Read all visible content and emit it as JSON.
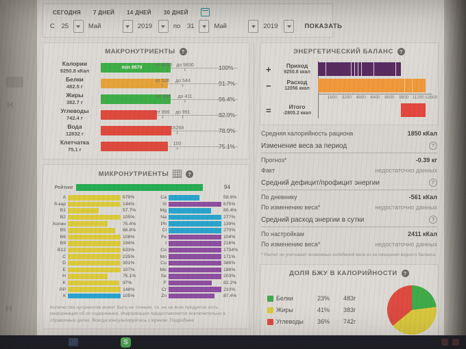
{
  "filter": {
    "tabs": [
      "СЕГОДНЯ",
      "7 ДНЕЙ",
      "14 ДНЕЙ",
      "30 ДНЕЙ"
    ],
    "from_label": "С",
    "from_day": "25",
    "from_month": "Май",
    "from_year": "2019",
    "to_label": "по",
    "to_day": "31",
    "to_month": "Май",
    "to_year": "2019",
    "show_button": "ПОКАЗАТЬ"
  },
  "icons": {
    "help": "?"
  },
  "macronutrients": {
    "title": "МАКРОНУТРИЕНТЫ",
    "rows": [
      {
        "label": "Калории",
        "amount": "9250.8 кКал",
        "percent": "100%",
        "color": "#3eae47",
        "width": "62%",
        "inner": "min 8670",
        "m1": "от 9250",
        "m1_pos": "56%",
        "m2": "до 9830",
        "m2_pos": "75%"
      },
      {
        "label": "Белки",
        "amount": "482.5 г",
        "percent": "91.7%",
        "color": "#e5a33c",
        "width": "60%",
        "m1": "от 526",
        "m1_pos": "55%",
        "m2": "до 544",
        "m2_pos": "73%"
      },
      {
        "label": "Жиры",
        "amount": "382.7 г",
        "percent": "96.4%",
        "color": "#3eae47",
        "width": "62%",
        "m1": "от 397",
        "m1_pos": "56%",
        "m2": "до 411",
        "m2_pos": "75%"
      },
      {
        "label": "Углеводы",
        "amount": "742.4 г",
        "percent": "82.9%",
        "color": "#df4a3e",
        "width": "50%",
        "m1": "от 896",
        "m1_pos": "55%",
        "m2": "до 991",
        "m2_pos": "73%"
      },
      {
        "label": "Вода",
        "amount": "12832 г",
        "percent": "78.9%",
        "color": "#df4a3e",
        "width": "63%",
        "m1": "16268",
        "m1_pos": "68%",
        "m2": "",
        "m2_pos": "0%"
      },
      {
        "label": "Клетчатка",
        "amount": "75.1 г",
        "percent": "75.1%",
        "color": "#df4a3e",
        "width": "60%",
        "m1": "100",
        "m1_pos": "68%",
        "m2": "",
        "m2_pos": "0%"
      }
    ]
  },
  "energy": {
    "title": "ЭНЕРГЕТИЧЕСКИЙ БАЛАНС",
    "income_sign": "+",
    "income_label": "Приход",
    "income_amount": "9250.8 ккал",
    "income_color": "#582c61",
    "income_width": "72.3%",
    "expense_sign": "−",
    "expense_label": "Расход",
    "expense_amount": "12056 ккал",
    "expense_color": "#f0993c",
    "expense_width": "94.2%",
    "total_sign": "=",
    "total_label": "Итого",
    "total_amount": "-2805.2 ккал",
    "total_color": "#e2483d",
    "total_left": "72.3%",
    "total_width": "21.9%",
    "ticks": [
      "1600",
      "3200",
      "4800",
      "6400",
      "8000",
      "9600",
      "11200",
      "12800"
    ]
  },
  "stats": {
    "avg_label": "Средняя калорийность рациона",
    "avg_value": "1850 кКал",
    "weight_header": "Изменение веса за период",
    "forecast_label": "Прогноз*",
    "forecast_value": "-0.39 кг",
    "fact_label": "Факт",
    "fact_value": "недостаточно данных",
    "deficit_header": "Средний дефицит/профицит энергии",
    "diary_label": "По дневнику",
    "diary_value": "-561 кКал",
    "weight_change_label": "По изменению веса*",
    "weight_change_value": "недостаточно данных",
    "expenditure_header": "Средний расход энергии в сутки",
    "settings_label": "По настройкам",
    "settings_value": "2411 кКал",
    "weight_change2_label": "По изменению веса*",
    "weight_change2_value": "недостаточно данных",
    "footnote": "* Расчет не учитывает возможных колебаний веса из-за смещения водного баланса"
  },
  "micronutrients": {
    "title": "МИКРОНУТРИЕНТЫ",
    "rating_label": "Рейтинг",
    "rating_value": "94",
    "rating_color": "#27ad53",
    "rating_width": "88%",
    "vitamins": [
      {
        "label": "A",
        "value": "679%",
        "width": "100%",
        "color": "#dcca3d"
      },
      {
        "label": "б-кар",
        "value": "144%",
        "width": "100%",
        "color": "#dcca3d"
      },
      {
        "label": "B1",
        "value": "57.7%",
        "width": "58%",
        "color": "#dcca3d"
      },
      {
        "label": "B2",
        "value": "105%",
        "width": "100%",
        "color": "#dcca3d"
      },
      {
        "label": "Холин",
        "value": "75.4%",
        "width": "75%",
        "color": "#dcca3d"
      },
      {
        "label": "B5",
        "value": "88.8%",
        "width": "89%",
        "color": "#dcca3d"
      },
      {
        "label": "B6",
        "value": "108%",
        "width": "100%",
        "color": "#dcca3d"
      },
      {
        "label": "B9",
        "value": "194%",
        "width": "100%",
        "color": "#dcca3d"
      },
      {
        "label": "B12",
        "value": "633%",
        "width": "100%",
        "color": "#dcca3d"
      },
      {
        "label": "C",
        "value": "225%",
        "width": "100%",
        "color": "#dcca3d"
      },
      {
        "label": "D",
        "value": "301%",
        "width": "100%",
        "color": "#dcca3d"
      },
      {
        "label": "E",
        "value": "107%",
        "width": "100%",
        "color": "#dcca3d"
      },
      {
        "label": "H",
        "value": "75.1%",
        "width": "75%",
        "color": "#dcca3d"
      },
      {
        "label": "K",
        "value": "97%",
        "width": "97%",
        "color": "#dcca3d"
      },
      {
        "label": "PP",
        "value": "148%",
        "width": "100%",
        "color": "#dcca3d"
      },
      {
        "label": "К",
        "value": "105%",
        "width": "100%",
        "color": "#2aa4cd"
      }
    ],
    "minerals": [
      {
        "label": "Ca",
        "value": "58.6%",
        "width": "59%",
        "color": "#2aa4cd"
      },
      {
        "label": "Si",
        "value": "675%",
        "width": "100%",
        "color": "#8d4fa0"
      },
      {
        "label": "Mg",
        "value": "80.4%",
        "width": "80%",
        "color": "#2aa4cd"
      },
      {
        "label": "Na",
        "value": "277%",
        "width": "100%",
        "color": "#2aa4cd"
      },
      {
        "label": "Ph",
        "value": "139%",
        "width": "100%",
        "color": "#2aa4cd"
      },
      {
        "label": "Cl",
        "value": "270%",
        "width": "100%",
        "color": "#2aa4cd"
      },
      {
        "label": "Fe",
        "value": "104%",
        "width": "100%",
        "color": "#8d4fa0"
      },
      {
        "label": "I",
        "value": "216%",
        "width": "100%",
        "color": "#8d4fa0"
      },
      {
        "label": "Co",
        "value": "1734%",
        "width": "100%",
        "color": "#8d4fa0"
      },
      {
        "label": "Mn",
        "value": "171%",
        "width": "100%",
        "color": "#8d4fa0"
      },
      {
        "label": "Cu",
        "value": "386%",
        "width": "100%",
        "color": "#8d4fa0"
      },
      {
        "label": "Mo",
        "value": "186%",
        "width": "100%",
        "color": "#8d4fa0"
      },
      {
        "label": "Se",
        "value": "203%",
        "width": "100%",
        "color": "#8d4fa0"
      },
      {
        "label": "F",
        "value": "82.2%",
        "width": "82%",
        "color": "#8d4fa0"
      },
      {
        "label": "Cr",
        "value": "210%",
        "width": "100%",
        "color": "#8d4fa0"
      },
      {
        "label": "Zn",
        "value": "87.4%",
        "width": "87%",
        "color": "#8d4fa0"
      }
    ],
    "disclaimer": "Количество нутриентов может быть не точным, т.к. не на всех продуктах есть информация об их содержании. Информация предоставляется исключительно в справочных целях. Всегда консультируйтесь с врачом. Подробнее"
  },
  "bju": {
    "title": "ДОЛЯ БЖУ В КАЛОРИЙНОСТИ",
    "legend": [
      {
        "name": "Белки",
        "percent": "23%",
        "grams": "483г",
        "color": "#41ab49"
      },
      {
        "name": "Жиры",
        "percent": "41%",
        "grams": "383г",
        "color": "#d9c83e"
      },
      {
        "name": "Углеводы",
        "percent": "36%",
        "grams": "742г",
        "color": "#dd4b41"
      }
    ]
  },
  "desktop": {
    "letter": "Н"
  },
  "taskbar": {
    "skype_label": "S"
  }
}
